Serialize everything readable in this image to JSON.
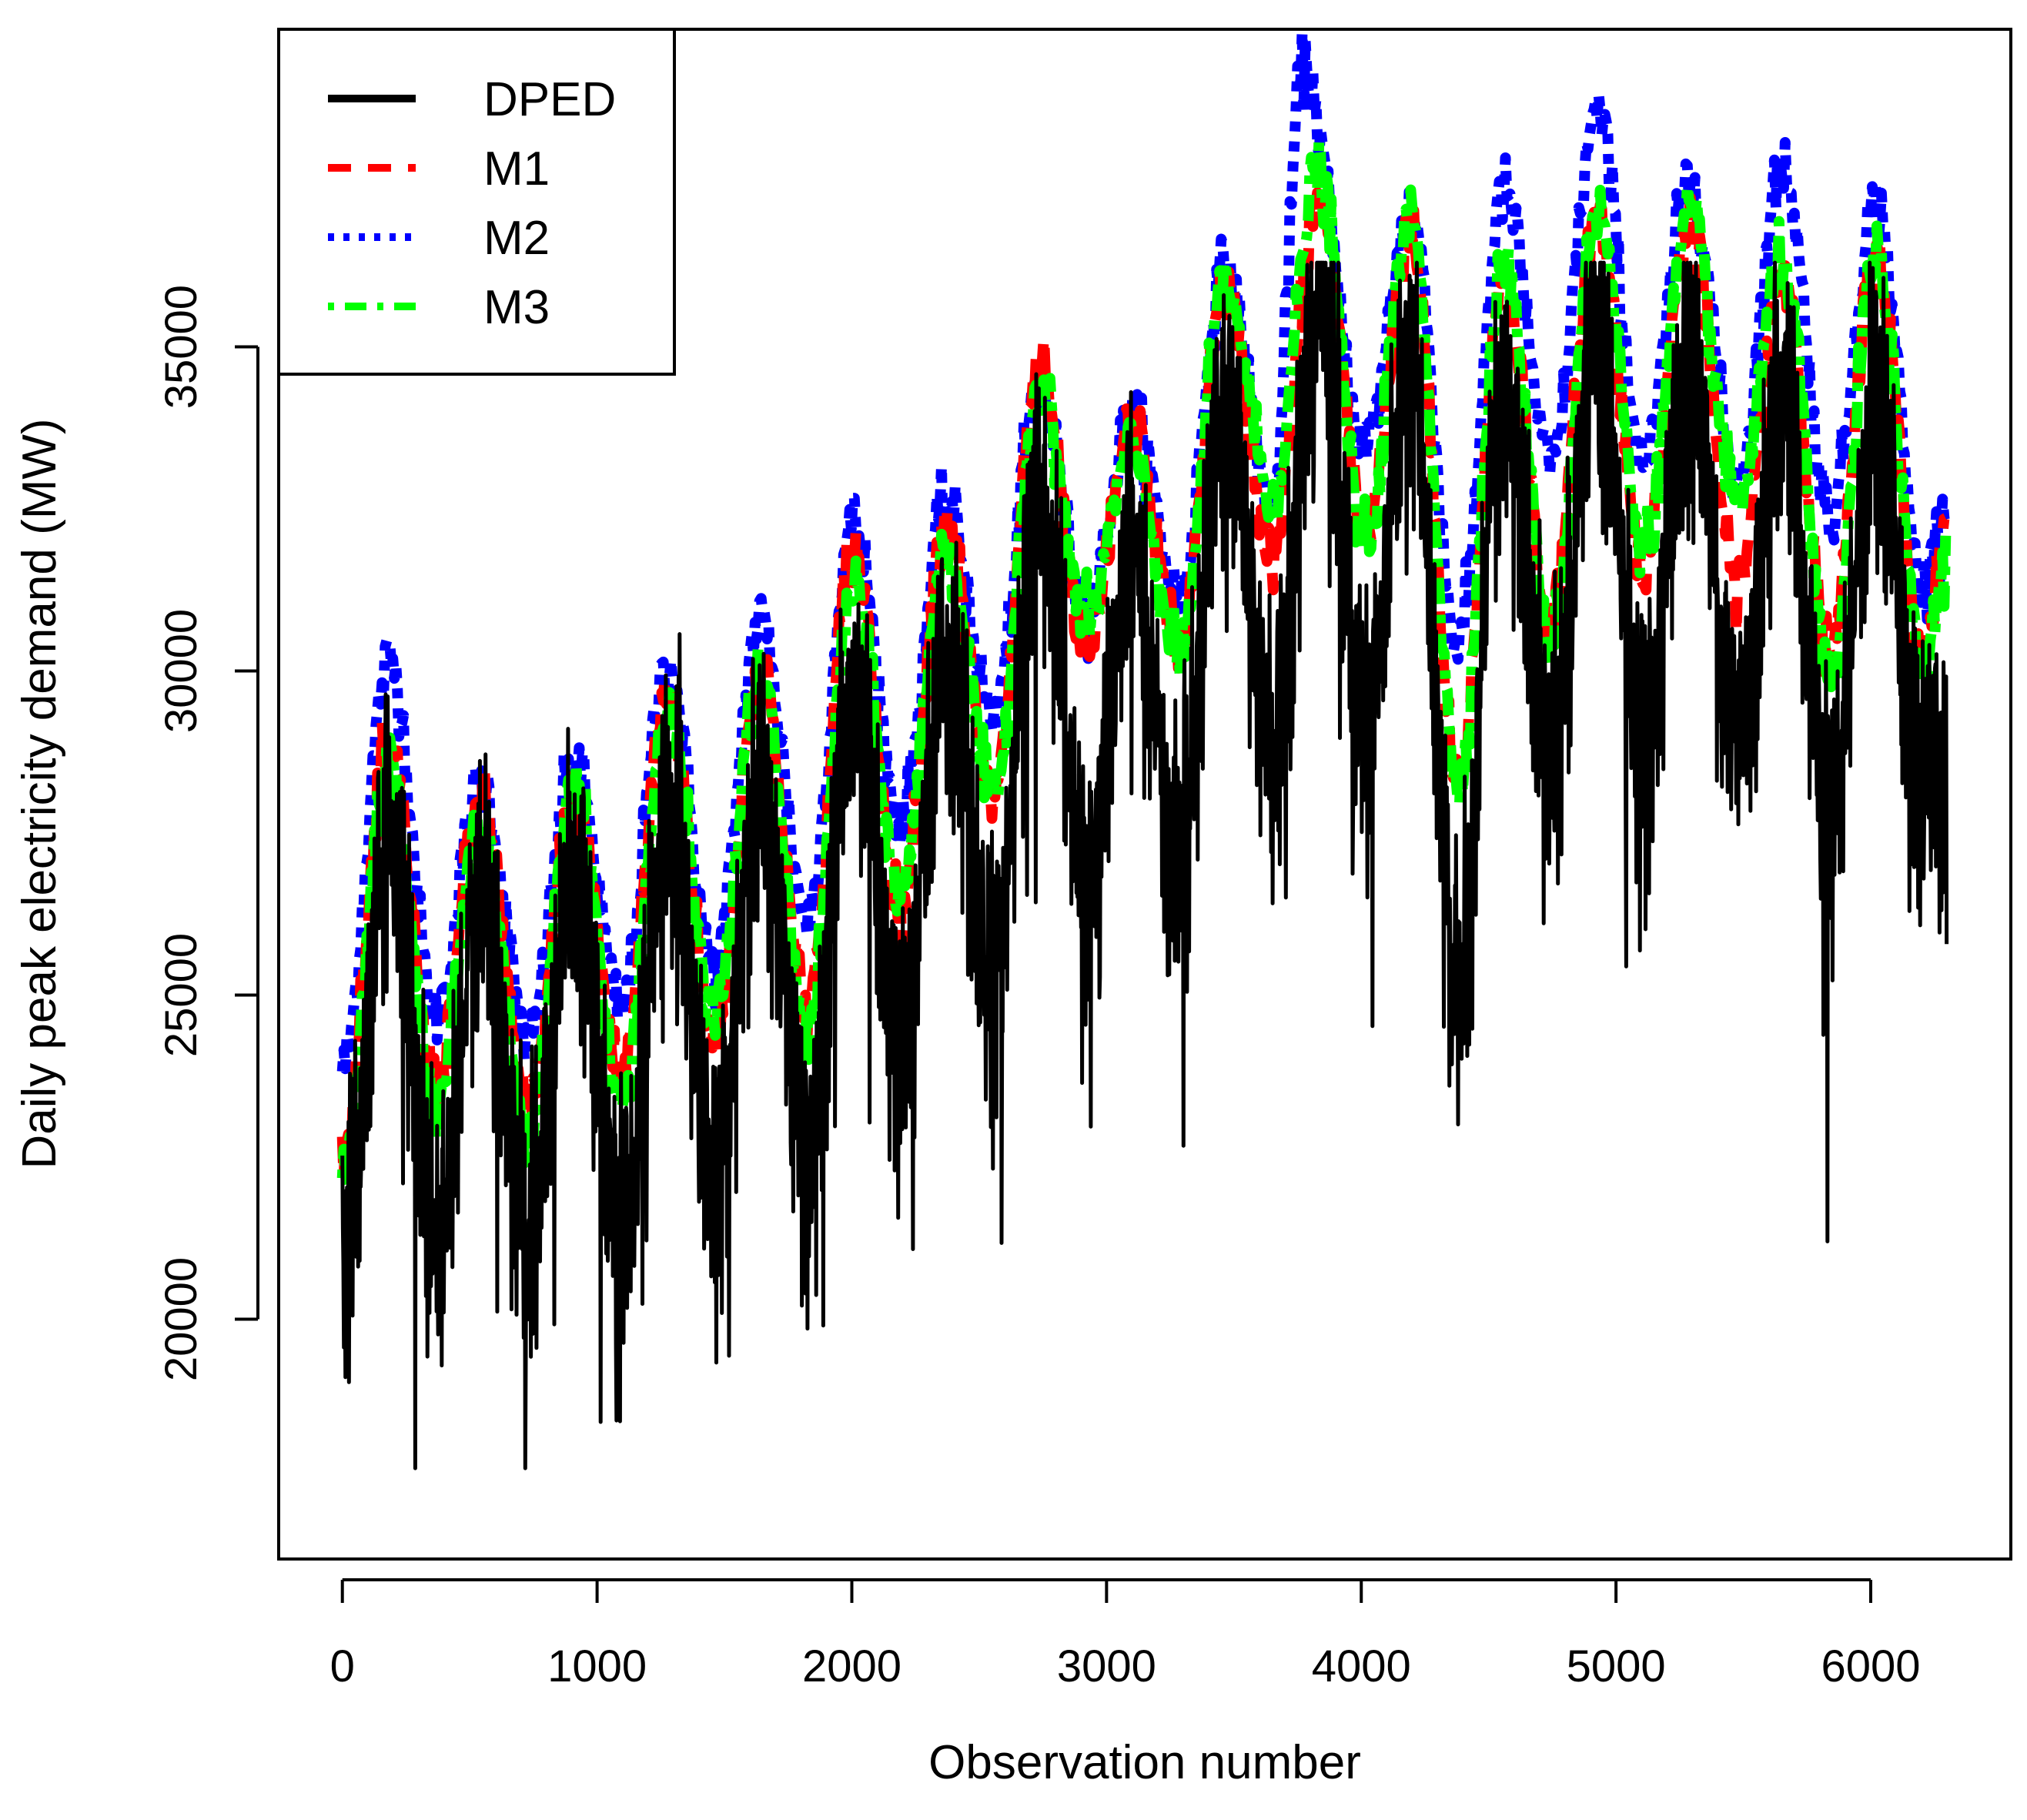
{
  "chart_data": {
    "type": "line",
    "title": "",
    "xlabel": "Observation number",
    "ylabel": "Daily peak electricity demand (MW)",
    "xlim": [
      -250,
      6550
    ],
    "ylim": [
      16300,
      39900
    ],
    "x_ticks": [
      0,
      1000,
      2000,
      3000,
      4000,
      5000,
      6000
    ],
    "y_ticks": [
      20000,
      25000,
      30000,
      35000
    ],
    "x_tick_labels": [
      "0",
      "1000",
      "2000",
      "3000",
      "4000",
      "5000",
      "6000"
    ],
    "y_tick_labels": [
      "20000",
      "25000",
      "30000",
      "35000"
    ],
    "grid": false,
    "legend_position": "top-left",
    "n_observations": 6300,
    "series": [
      {
        "name": "DPED",
        "color": "#000000",
        "line_style": "solid",
        "peaks": [
          {
            "x": 0,
            "y": 21500
          },
          {
            "x": 185,
            "y": 28000
          },
          {
            "x": 365,
            "y": 22000
          },
          {
            "x": 545,
            "y": 26800
          },
          {
            "x": 730,
            "y": 21800
          },
          {
            "x": 910,
            "y": 27500
          },
          {
            "x": 1095,
            "y": 22000
          },
          {
            "x": 1275,
            "y": 28200
          },
          {
            "x": 1460,
            "y": 22800
          },
          {
            "x": 1640,
            "y": 28600
          },
          {
            "x": 1825,
            "y": 23200
          },
          {
            "x": 2005,
            "y": 30200
          },
          {
            "x": 2190,
            "y": 24600
          },
          {
            "x": 2370,
            "y": 30700
          },
          {
            "x": 2555,
            "y": 25700
          },
          {
            "x": 2735,
            "y": 33200
          },
          {
            "x": 2920,
            "y": 27200
          },
          {
            "x": 3100,
            "y": 32300
          },
          {
            "x": 3285,
            "y": 27700
          },
          {
            "x": 3465,
            "y": 34800
          },
          {
            "x": 3650,
            "y": 29200
          },
          {
            "x": 3830,
            "y": 36200
          },
          {
            "x": 4015,
            "y": 29700
          },
          {
            "x": 4195,
            "y": 35300
          },
          {
            "x": 4380,
            "y": 25500
          },
          {
            "x": 4560,
            "y": 34800
          },
          {
            "x": 4745,
            "y": 29200
          },
          {
            "x": 4925,
            "y": 35700
          },
          {
            "x": 5110,
            "y": 29200
          },
          {
            "x": 5290,
            "y": 35300
          },
          {
            "x": 5475,
            "y": 29700
          },
          {
            "x": 5655,
            "y": 34800
          },
          {
            "x": 5840,
            "y": 28200
          },
          {
            "x": 6020,
            "y": 34800
          },
          {
            "x": 6205,
            "y": 28700
          },
          {
            "x": 6299,
            "y": 29200
          }
        ],
        "min_value": 17700,
        "max_value": 36300
      },
      {
        "name": "M1",
        "color": "#ff0000",
        "line_style": "dashed",
        "peaks": [
          {
            "x": 0,
            "y": 22600
          },
          {
            "x": 185,
            "y": 28800
          },
          {
            "x": 365,
            "y": 23600
          },
          {
            "x": 545,
            "y": 28000
          },
          {
            "x": 730,
            "y": 23200
          },
          {
            "x": 910,
            "y": 28100
          },
          {
            "x": 1095,
            "y": 23800
          },
          {
            "x": 1275,
            "y": 29700
          },
          {
            "x": 1460,
            "y": 24300
          },
          {
            "x": 1640,
            "y": 30100
          },
          {
            "x": 1825,
            "y": 24800
          },
          {
            "x": 2005,
            "y": 31900
          },
          {
            "x": 2190,
            "y": 26300
          },
          {
            "x": 2370,
            "y": 32300
          },
          {
            "x": 2555,
            "y": 28000
          },
          {
            "x": 2735,
            "y": 34700
          },
          {
            "x": 2920,
            "y": 30200
          },
          {
            "x": 3100,
            "y": 33800
          },
          {
            "x": 3285,
            "y": 30400
          },
          {
            "x": 3465,
            "y": 35900
          },
          {
            "x": 3650,
            "y": 31800
          },
          {
            "x": 3830,
            "y": 37300
          },
          {
            "x": 4015,
            "y": 32200
          },
          {
            "x": 4195,
            "y": 36700
          },
          {
            "x": 4380,
            "y": 28200
          },
          {
            "x": 4560,
            "y": 36100
          },
          {
            "x": 4745,
            "y": 30700
          },
          {
            "x": 4925,
            "y": 37000
          },
          {
            "x": 5110,
            "y": 31700
          },
          {
            "x": 5290,
            "y": 36900
          },
          {
            "x": 5475,
            "y": 31300
          },
          {
            "x": 5655,
            "y": 36200
          },
          {
            "x": 5840,
            "y": 30200
          },
          {
            "x": 6020,
            "y": 36400
          },
          {
            "x": 6205,
            "y": 30300
          },
          {
            "x": 6299,
            "y": 32300
          }
        ]
      },
      {
        "name": "M2",
        "color": "#0000ff",
        "line_style": "dotted",
        "peaks": [
          {
            "x": 0,
            "y": 23900
          },
          {
            "x": 185,
            "y": 30200
          },
          {
            "x": 365,
            "y": 24700
          },
          {
            "x": 545,
            "y": 28300
          },
          {
            "x": 730,
            "y": 24300
          },
          {
            "x": 910,
            "y": 28600
          },
          {
            "x": 1095,
            "y": 24800
          },
          {
            "x": 1275,
            "y": 30100
          },
          {
            "x": 1460,
            "y": 25400
          },
          {
            "x": 1640,
            "y": 30800
          },
          {
            "x": 1825,
            "y": 26200
          },
          {
            "x": 2005,
            "y": 32300
          },
          {
            "x": 2190,
            "y": 27700
          },
          {
            "x": 2370,
            "y": 32600
          },
          {
            "x": 2555,
            "y": 29300
          },
          {
            "x": 2735,
            "y": 34400
          },
          {
            "x": 2920,
            "y": 30900
          },
          {
            "x": 3100,
            "y": 33900
          },
          {
            "x": 3285,
            "y": 31200
          },
          {
            "x": 3465,
            "y": 36200
          },
          {
            "x": 3650,
            "y": 32500
          },
          {
            "x": 3770,
            "y": 39300
          },
          {
            "x": 4015,
            "y": 33500
          },
          {
            "x": 4195,
            "y": 37100
          },
          {
            "x": 4380,
            "y": 30400
          },
          {
            "x": 4560,
            "y": 37400
          },
          {
            "x": 4745,
            "y": 33200
          },
          {
            "x": 4925,
            "y": 38600
          },
          {
            "x": 5110,
            "y": 33200
          },
          {
            "x": 5290,
            "y": 37600
          },
          {
            "x": 5475,
            "y": 32900
          },
          {
            "x": 5655,
            "y": 37800
          },
          {
            "x": 5840,
            "y": 32400
          },
          {
            "x": 6020,
            "y": 37200
          },
          {
            "x": 6205,
            "y": 31300
          },
          {
            "x": 6299,
            "y": 32600
          }
        ]
      },
      {
        "name": "M3",
        "color": "#00ff00",
        "line_style": "dotdash",
        "peaks": [
          {
            "x": 0,
            "y": 22300
          },
          {
            "x": 185,
            "y": 28600
          },
          {
            "x": 365,
            "y": 23300
          },
          {
            "x": 545,
            "y": 27600
          },
          {
            "x": 730,
            "y": 22700
          },
          {
            "x": 910,
            "y": 28300
          },
          {
            "x": 1095,
            "y": 23300
          },
          {
            "x": 1275,
            "y": 29300
          },
          {
            "x": 1460,
            "y": 24700
          },
          {
            "x": 1640,
            "y": 29900
          },
          {
            "x": 1825,
            "y": 24400
          },
          {
            "x": 2005,
            "y": 31300
          },
          {
            "x": 2190,
            "y": 26600
          },
          {
            "x": 2370,
            "y": 31900
          },
          {
            "x": 2555,
            "y": 28000
          },
          {
            "x": 2735,
            "y": 34400
          },
          {
            "x": 2920,
            "y": 30800
          },
          {
            "x": 3100,
            "y": 33400
          },
          {
            "x": 3285,
            "y": 30200
          },
          {
            "x": 3465,
            "y": 36000
          },
          {
            "x": 3650,
            "y": 32700
          },
          {
            "x": 3830,
            "y": 37700
          },
          {
            "x": 4015,
            "y": 32000
          },
          {
            "x": 4195,
            "y": 37000
          },
          {
            "x": 4380,
            "y": 28300
          },
          {
            "x": 4560,
            "y": 36300
          },
          {
            "x": 4745,
            "y": 30500
          },
          {
            "x": 4925,
            "y": 37100
          },
          {
            "x": 5110,
            "y": 32000
          },
          {
            "x": 5290,
            "y": 37000
          },
          {
            "x": 5475,
            "y": 32600
          },
          {
            "x": 5655,
            "y": 36300
          },
          {
            "x": 5840,
            "y": 29800
          },
          {
            "x": 6020,
            "y": 36400
          },
          {
            "x": 6205,
            "y": 30000
          },
          {
            "x": 6299,
            "y": 31700
          }
        ]
      }
    ]
  }
}
